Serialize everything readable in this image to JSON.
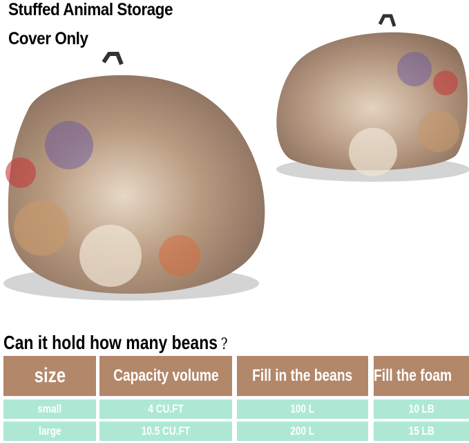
{
  "title_line1": "Stuffed Animal Storage",
  "title_line2": "Cover Only",
  "question": "Can it hold how many beans",
  "question_mark": "?",
  "colors": {
    "header": "#b3876a",
    "row": "#aee8d4"
  },
  "table": {
    "headers": [
      "size",
      "Capacity volume",
      "Fill in the beans",
      "Fill the foam"
    ],
    "rows": [
      [
        "small",
        "4 CU.FT",
        "100 L",
        "10 LB"
      ],
      [
        "large",
        "10.5 CU.FT",
        "200 L",
        "15 LB"
      ]
    ]
  }
}
